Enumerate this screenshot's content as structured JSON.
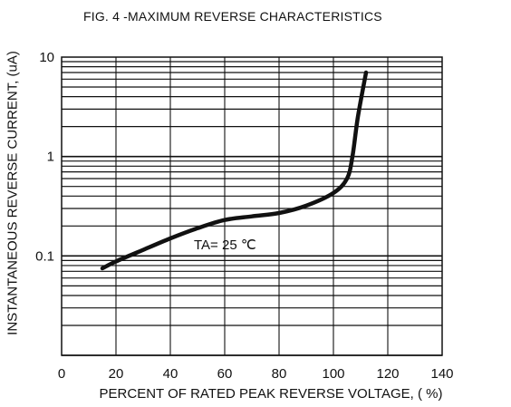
{
  "chart_data": {
    "type": "line",
    "title": "FIG. 4 -MAXIMUM REVERSE CHARACTERISTICS",
    "xlabel": "PERCENT OF RATED PEAK REVERSE VOLTAGE, ( %)",
    "ylabel": "INSTANTANEOUS REVERSE CURRENT, (uA)",
    "x_scale": "linear",
    "y_scale": "log",
    "xlim": [
      0,
      140
    ],
    "ylim": [
      0.01,
      10
    ],
    "x_ticks": [
      "0",
      "20",
      "40",
      "60",
      "80",
      "100",
      "120",
      "140"
    ],
    "y_ticks": [
      "10",
      "1",
      "0.1"
    ],
    "grid": true,
    "annotation": "TA= 25 ℃",
    "series": [
      {
        "x": [
          15,
          20,
          30,
          40,
          50,
          60,
          70,
          80,
          90,
          100,
          105,
          107,
          109,
          112
        ],
        "y": [
          0.075,
          0.088,
          0.115,
          0.15,
          0.19,
          0.23,
          0.25,
          0.27,
          0.32,
          0.43,
          0.6,
          1.0,
          2.5,
          7.0
        ]
      }
    ]
  }
}
